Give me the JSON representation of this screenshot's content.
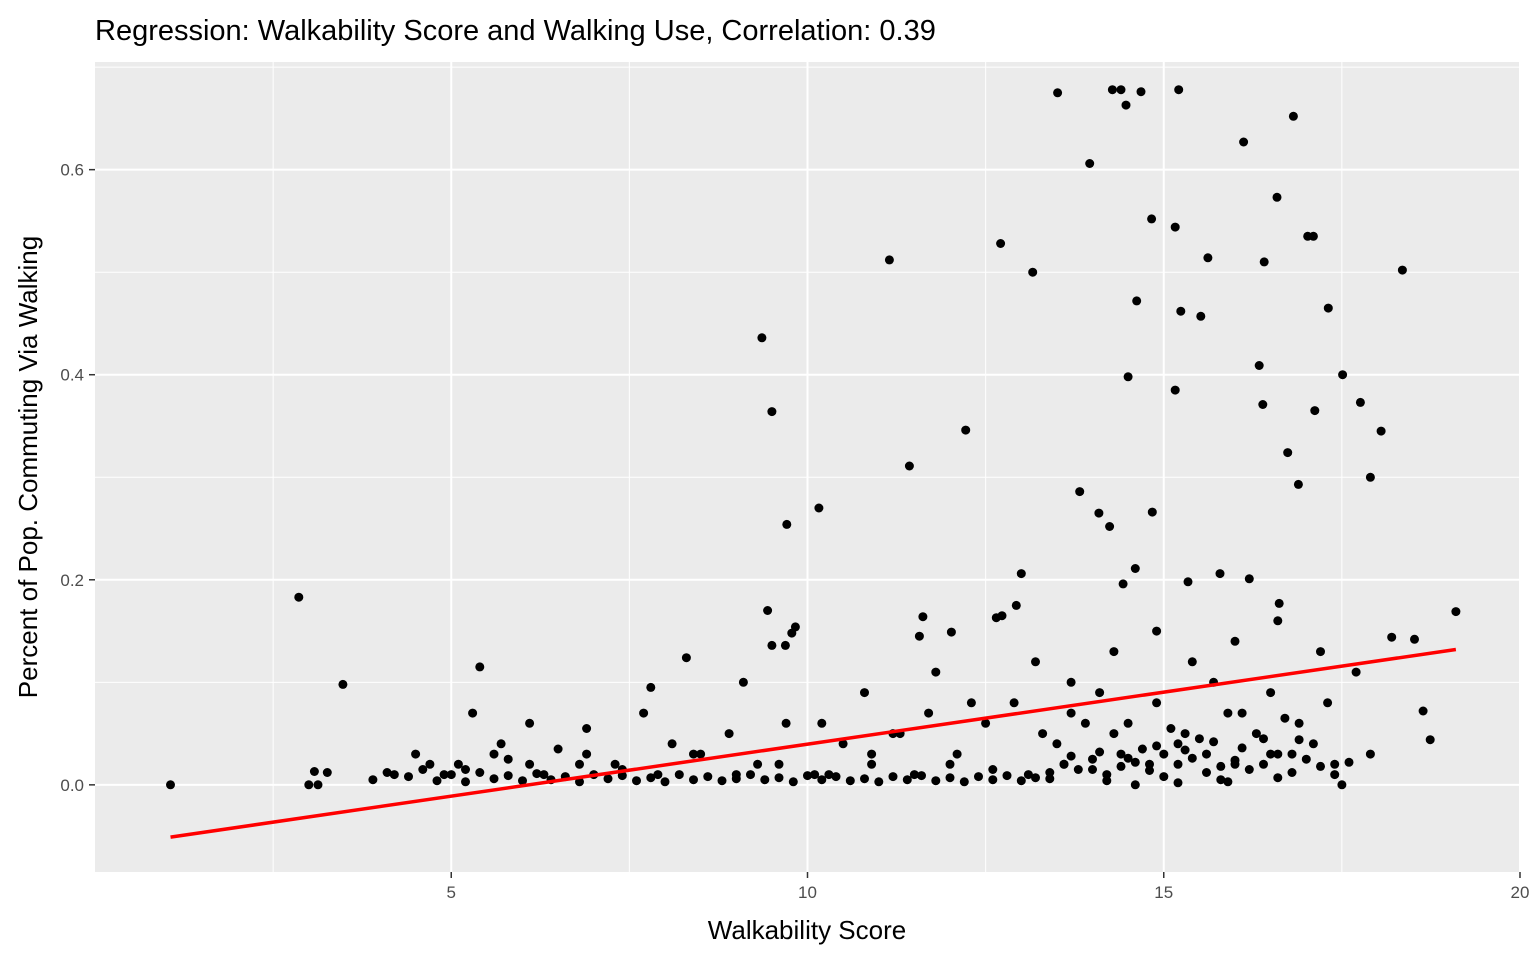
{
  "chart_data": {
    "type": "scatter",
    "title": "Regression: Walkability Score and Walking Use, Correlation: 0.39",
    "xlabel": "Walkability Score",
    "ylabel": "Percent of Pop. Commuting Via Walking",
    "xlim": [
      0.0,
      20.0
    ],
    "ylim": [
      -0.085,
      0.705
    ],
    "x_ticks": [
      5,
      10,
      15,
      20
    ],
    "x_tick_labels": [
      "5",
      "10",
      "15",
      "20"
    ],
    "y_ticks": [
      0.0,
      0.2,
      0.4,
      0.6
    ],
    "y_tick_labels": [
      "0.0",
      "0.2",
      "0.4",
      "0.6"
    ],
    "grid": true,
    "legend": "none",
    "colors": {
      "panel": "#ebebeb",
      "grid": "#ffffff",
      "points": "#000000",
      "fit_line": "#ff0000"
    },
    "fit_line": {
      "x": [
        1.06,
        19.1
      ],
      "y": [
        -0.051,
        0.132
      ]
    },
    "points": {
      "x": [
        1.06,
        2.86,
        3.0,
        3.08,
        3.13,
        3.26,
        3.48,
        5.4,
        9.36,
        9.5,
        9.71,
        10.16,
        11.15,
        11.43,
        12.22,
        12.71,
        12.73,
        13.16,
        13.51,
        13.96,
        14.28,
        14.4,
        14.47,
        14.68,
        15.21,
        16.12,
        16.82,
        14.62,
        15.16,
        14.83,
        16.59,
        17.02,
        17.1,
        18.35,
        15.62,
        15.52,
        16.41,
        17.31,
        17.51,
        18.05,
        17.76,
        17.9,
        14.5,
        16.39,
        15.24,
        16.74,
        16.34,
        14.09,
        14.24,
        14.84,
        13.82,
        15.16,
        16.89,
        17.12,
        9.44,
        9.5,
        9.78,
        9.83,
        9.69,
        11.62,
        11.57,
        12.02,
        12.65,
        13.0,
        12.93,
        14.43,
        14.6,
        15.34,
        15.79,
        16.2,
        16.62,
        18.2,
        18.52,
        18.64,
        18.74,
        19.1,
        5.1,
        5.6,
        6.1,
        6.9,
        7.8,
        8.3,
        9.1,
        10.2,
        10.8,
        11.2,
        11.8,
        12.3,
        13.2,
        13.7,
        14.3,
        14.9,
        15.4,
        16.0,
        16.6,
        17.2,
        17.7,
        4.5,
        4.9,
        5.3,
        5.7,
        6.1,
        6.5,
        6.9,
        7.3,
        7.7,
        8.1,
        8.5,
        8.9,
        9.3,
        9.7,
        10.1,
        10.5,
        10.9,
        11.3,
        11.7,
        12.1,
        12.5,
        12.9,
        13.3,
        13.7,
        14.1,
        14.5,
        14.9,
        15.3,
        15.7,
        16.1,
        16.5,
        16.9,
        17.3,
        4.2,
        4.7,
        5.2,
        5.8,
        6.3,
        6.8,
        7.4,
        7.9,
        8.4,
        9.0,
        9.6,
        10.3,
        10.9,
        11.5,
        12.0,
        12.6,
        13.1,
        13.6,
        14.0,
        14.4,
        14.8,
        15.2,
        15.6,
        16.0,
        16.4,
        16.8,
        17.4,
        17.9,
        3.9,
        4.1,
        4.4,
        4.6,
        4.8,
        5.0,
        5.2,
        5.4,
        5.6,
        5.8,
        6.0,
        6.2,
        6.4,
        6.6,
        6.8,
        7.0,
        7.2,
        7.4,
        7.6,
        7.8,
        8.0,
        8.2,
        8.4,
        8.6,
        8.8,
        9.0,
        9.2,
        9.4,
        9.6,
        9.8,
        10.0,
        10.2,
        10.4,
        10.6,
        10.8,
        11.0,
        11.2,
        11.4,
        11.6,
        11.8,
        12.0,
        12.2,
        12.4,
        12.6,
        12.8,
        13.0,
        13.2,
        13.4,
        13.6,
        13.8,
        14.0,
        14.2,
        14.4,
        14.6,
        14.8,
        15.0,
        15.2,
        15.4,
        15.6,
        15.8,
        16.0,
        16.2,
        16.4,
        16.6,
        16.8,
        17.0,
        17.2,
        17.4,
        17.6,
        13.5,
        13.9,
        14.3,
        14.7,
        15.1,
        15.5,
        15.9,
        16.3,
        16.7,
        17.1,
        13.7,
        14.1,
        14.5,
        14.9,
        15.3,
        15.7,
        16.1,
        16.5,
        16.9,
        13.4,
        14.2,
        15.0,
        15.8,
        16.6,
        17.5,
        14.6,
        15.2,
        15.9
      ],
      "y": [
        0.0,
        0.183,
        0.0,
        0.013,
        0.0,
        0.012,
        0.098,
        0.115,
        0.436,
        0.364,
        0.254,
        0.27,
        0.512,
        0.311,
        0.346,
        0.528,
        0.165,
        0.5,
        0.675,
        0.606,
        0.678,
        0.678,
        0.663,
        0.676,
        0.678,
        0.627,
        0.652,
        0.472,
        0.544,
        0.552,
        0.573,
        0.535,
        0.535,
        0.502,
        0.514,
        0.457,
        0.51,
        0.465,
        0.4,
        0.345,
        0.373,
        0.3,
        0.398,
        0.371,
        0.462,
        0.324,
        0.409,
        0.265,
        0.252,
        0.266,
        0.286,
        0.385,
        0.293,
        0.365,
        0.17,
        0.136,
        0.148,
        0.154,
        0.136,
        0.164,
        0.145,
        0.149,
        0.163,
        0.206,
        0.175,
        0.196,
        0.211,
        0.198,
        0.206,
        0.201,
        0.177,
        0.144,
        0.142,
        0.072,
        0.044,
        0.169,
        0.02,
        0.03,
        0.06,
        0.03,
        0.095,
        0.124,
        0.1,
        0.06,
        0.09,
        0.05,
        0.11,
        0.08,
        0.12,
        0.1,
        0.13,
        0.15,
        0.12,
        0.14,
        0.16,
        0.13,
        0.11,
        0.03,
        0.01,
        0.07,
        0.04,
        0.02,
        0.035,
        0.055,
        0.02,
        0.07,
        0.04,
        0.03,
        0.05,
        0.02,
        0.06,
        0.01,
        0.04,
        0.03,
        0.05,
        0.07,
        0.03,
        0.06,
        0.08,
        0.05,
        0.07,
        0.09,
        0.06,
        0.08,
        0.05,
        0.1,
        0.07,
        0.09,
        0.06,
        0.08,
        0.01,
        0.02,
        0.015,
        0.025,
        0.01,
        0.02,
        0.015,
        0.01,
        0.03,
        0.01,
        0.02,
        0.01,
        0.02,
        0.01,
        0.02,
        0.015,
        0.01,
        0.02,
        0.015,
        0.03,
        0.02,
        0.04,
        0.03,
        0.02,
        0.045,
        0.03,
        0.02,
        0.03,
        0.005,
        0.012,
        0.008,
        0.015,
        0.004,
        0.01,
        0.003,
        0.012,
        0.006,
        0.009,
        0.004,
        0.011,
        0.005,
        0.008,
        0.003,
        0.01,
        0.006,
        0.009,
        0.004,
        0.007,
        0.003,
        0.01,
        0.005,
        0.008,
        0.004,
        0.006,
        0.01,
        0.005,
        0.007,
        0.003,
        0.009,
        0.005,
        0.008,
        0.004,
        0.006,
        0.003,
        0.008,
        0.005,
        0.009,
        0.004,
        0.007,
        0.003,
        0.008,
        0.005,
        0.009,
        0.004,
        0.007,
        0.012,
        0.02,
        0.015,
        0.025,
        0.01,
        0.018,
        0.022,
        0.014,
        0.03,
        0.02,
        0.026,
        0.012,
        0.018,
        0.024,
        0.015,
        0.02,
        0.03,
        0.012,
        0.025,
        0.018,
        0.01,
        0.022,
        0.04,
        0.06,
        0.05,
        0.035,
        0.055,
        0.045,
        0.07,
        0.05,
        0.065,
        0.04,
        0.028,
        0.032,
        0.026,
        0.038,
        0.034,
        0.042,
        0.036,
        0.03,
        0.044,
        0.006,
        0.004,
        0.008,
        0.005,
        0.007,
        0.0,
        0.0,
        0.002,
        0.003
      ]
    }
  }
}
